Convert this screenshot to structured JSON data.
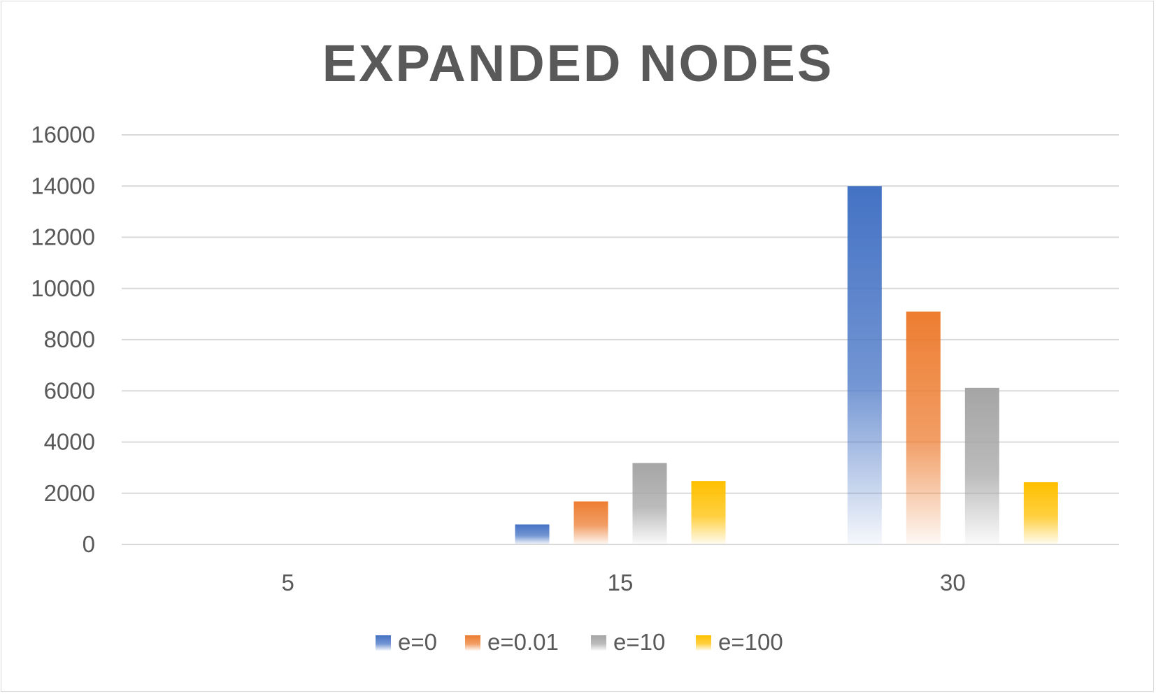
{
  "chart_data": {
    "type": "bar",
    "title": "EXPANDED NODES",
    "xlabel": "",
    "ylabel": "",
    "categories": [
      "5",
      "15",
      "30"
    ],
    "series": [
      {
        "name": "e=0",
        "values": [
          0,
          780,
          14000
        ],
        "color": "#4472C4"
      },
      {
        "name": "e=0.01",
        "values": [
          0,
          1680,
          9100
        ],
        "color": "#ED7D31"
      },
      {
        "name": "e=10",
        "values": [
          0,
          3180,
          6120
        ],
        "color": "#A5A5A5"
      },
      {
        "name": "e=100",
        "values": [
          0,
          2480,
          2430
        ],
        "color": "#FFC000"
      }
    ],
    "ylim": [
      0,
      16000
    ],
    "yticks": [
      "0",
      "2000",
      "4000",
      "6000",
      "8000",
      "10000",
      "12000",
      "14000",
      "16000"
    ],
    "grid": true,
    "legend_position": "bottom"
  }
}
